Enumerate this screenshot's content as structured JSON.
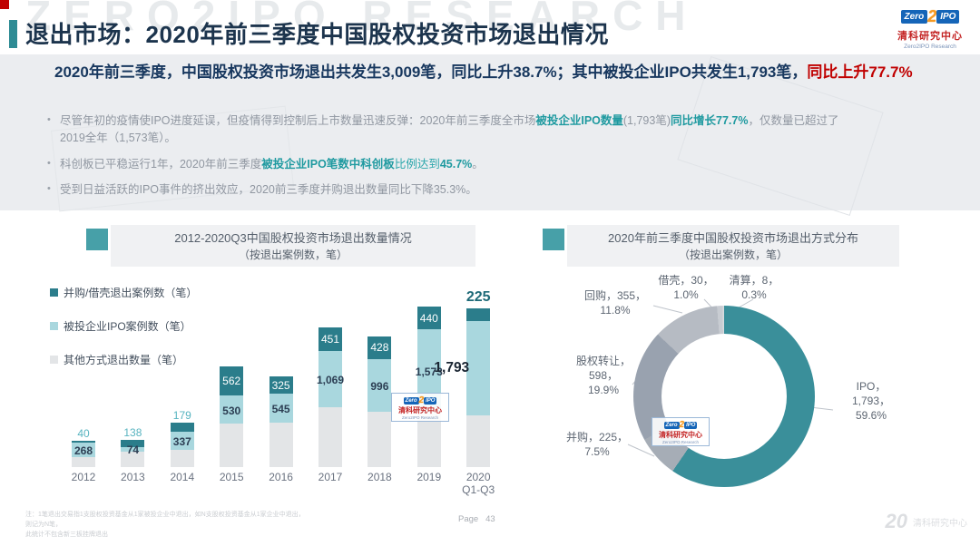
{
  "page": {
    "title": "退出市场：2020年前三季度中国股权投资市场退出情况",
    "ghost_watermark": "ZERO2IPO RESEARCH",
    "footnote": "注：1笔退出交易指1支股权投资基金从1家被投企业中退出，如N支股权投资基金从1家企业中退出，则记为N笔，\n此统计不包含新三板挂牌退出",
    "page_label": "Page",
    "page_number": "43",
    "brand_badge": "20",
    "brand_text": "清科研究中心"
  },
  "logo": {
    "zero": "Zero",
    "two": "2",
    "ipo": "IPO",
    "cn": "清科研究中心",
    "en": "Zero2IPO Research"
  },
  "summary": {
    "segments": [
      {
        "t": "2020年前三季度，中国股权投资市场退出共发生3,009笔，同比上升38.7%；其中被投企业IPO共发生1,793笔，",
        "s": "dark"
      },
      {
        "t": "同比上升77.7%",
        "s": "red"
      }
    ]
  },
  "bullets": [
    {
      "segments": [
        {
          "t": "尽管年初的疫情使IPO进度延误，但疫情得到控制后上市数量迅速反弹：2020年前三季度全市场",
          "s": "g"
        },
        {
          "t": "被投企业IPO数量",
          "s": "tb"
        },
        {
          "t": "(1,793笔)",
          "s": "g"
        },
        {
          "t": "同比增长77.7%",
          "s": "tb"
        },
        {
          "t": "，仅数量已超过了2019全年（1,573笔）。",
          "s": "g"
        }
      ]
    },
    {
      "segments": [
        {
          "t": "科创板已平稳运行1年，2020年前三季度",
          "s": "g"
        },
        {
          "t": "被投企业IPO笔数中科创板",
          "s": "tb"
        },
        {
          "t": "比例达到",
          "s": "t"
        },
        {
          "t": "45.7%",
          "s": "tb"
        },
        {
          "t": "。",
          "s": "g"
        }
      ]
    },
    {
      "segments": [
        {
          "t": "受到日益活跃的IPO事件的挤出效应，2020前三季度并购退出数量同比下降35.3%。",
          "s": "g"
        }
      ]
    }
  ],
  "chart_data": [
    {
      "type": "bar",
      "stacked": true,
      "title": "2012-2020Q3中国股权投资市场退出数量情况",
      "subtitle": "（按退出案例数，笔）",
      "categories": [
        "2012",
        "2013",
        "2014",
        "2015",
        "2016",
        "2017",
        "2018",
        "2019",
        "2020\nQ1-Q3"
      ],
      "series": [
        {
          "name": "并购/借壳退出案例数（笔）",
          "color": "#2b7d8b",
          "values": [
            40,
            138,
            179,
            562,
            325,
            451,
            428,
            440,
            225
          ]
        },
        {
          "name": "被投企业IPO案例数（笔）",
          "color": "#a9d7de",
          "values": [
            268,
            74,
            337,
            530,
            545,
            1069,
            996,
            1573,
            1793
          ]
        },
        {
          "name": "其他方式退出数量（笔）",
          "color": "#e3e5e7",
          "values": [
            190,
            300,
            330,
            830,
            850,
            1140,
            1060,
            1040,
            991
          ],
          "values_estimated_from_pixels": true,
          "labels_shown": false
        }
      ],
      "labels": {
        "mna": [
          "40",
          "138",
          "179",
          "562",
          "325",
          "451",
          "428",
          "440",
          "225"
        ],
        "ipo": [
          "268",
          "74",
          "337",
          "530",
          "545",
          "1,069",
          "996",
          "1,573",
          "1,793"
        ]
      }
    },
    {
      "type": "donut",
      "title": "2020年前三季度中国股权投资市场退出方式分布",
      "subtitle": "（按退出案例数，笔）",
      "total": 3009,
      "slices": [
        {
          "name": "IPO",
          "value": 1793,
          "display": "1,793",
          "pct": "59.6%",
          "color": "#3a8f9a",
          "label": "IPO，\n1,793，\n59.6%"
        },
        {
          "name": "并购",
          "value": 225,
          "display": "225",
          "pct": "7.5%",
          "color": "#a6adb6",
          "label": "并购，225，\n7.5%"
        },
        {
          "name": "股权转让",
          "value": 598,
          "display": "598",
          "pct": "19.9%",
          "color": "#99a2af",
          "label": "股权转让，\n598，\n19.9%"
        },
        {
          "name": "回购",
          "value": 355,
          "display": "355",
          "pct": "11.8%",
          "color": "#b6bbc3",
          "label": "回购，355，\n11.8%"
        },
        {
          "name": "借壳",
          "value": 30,
          "display": "30",
          "pct": "1.0%",
          "color": "#c8ccd2",
          "label": "借壳，30，\n1.0%"
        },
        {
          "name": "清算",
          "value": 8,
          "display": "8",
          "pct": "0.3%",
          "color": "#d9dbdf",
          "label": "清算，8，\n0.3%"
        }
      ]
    }
  ]
}
